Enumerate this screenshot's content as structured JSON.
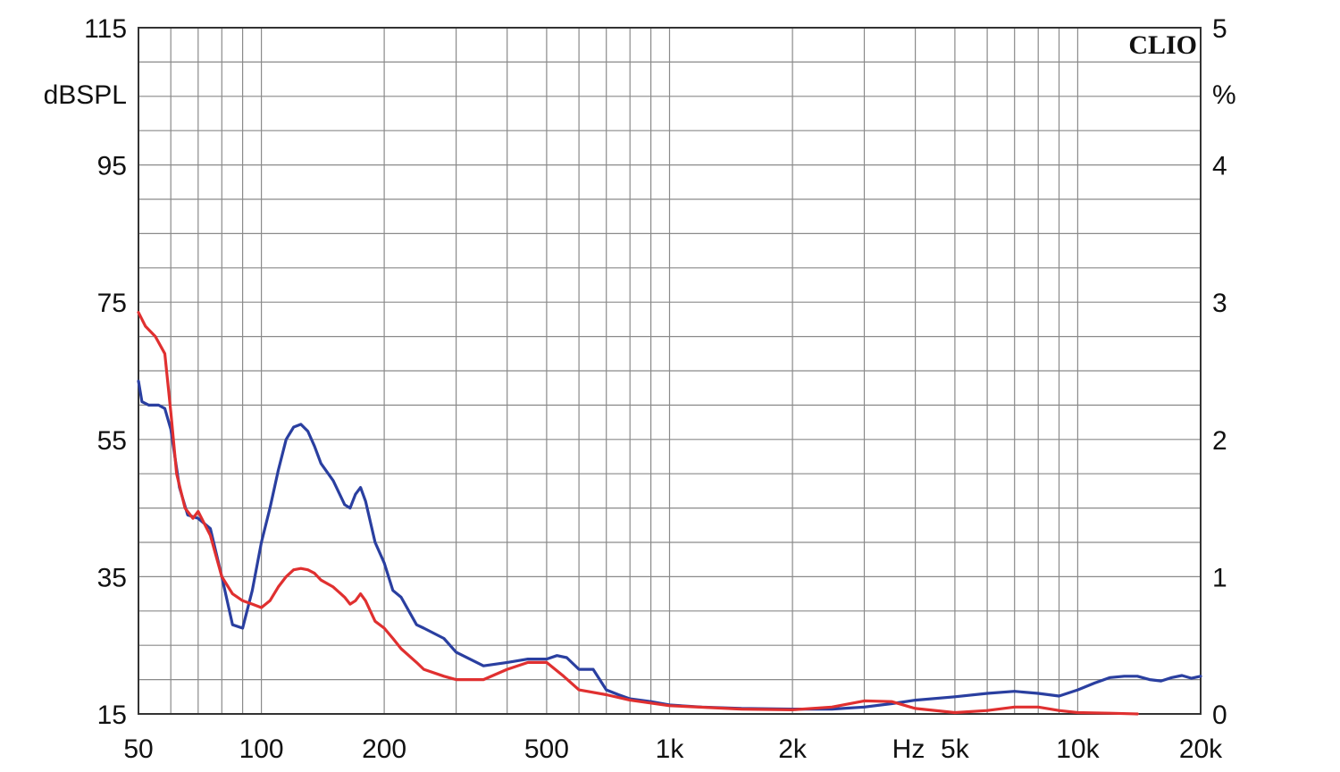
{
  "chart_data": {
    "type": "line",
    "brand": "CLIO",
    "x_scale": "log",
    "xlim": [
      50,
      20000
    ],
    "xlabel": "Hz",
    "x_ticks": [
      {
        "value": 50,
        "label": "50"
      },
      {
        "value": 100,
        "label": "100"
      },
      {
        "value": 200,
        "label": "200"
      },
      {
        "value": 500,
        "label": "500"
      },
      {
        "value": 1000,
        "label": "1k"
      },
      {
        "value": 2000,
        "label": "2k"
      },
      {
        "value": 5000,
        "label": "5k"
      },
      {
        "value": 10000,
        "label": "10k"
      },
      {
        "value": 20000,
        "label": "20k"
      }
    ],
    "ylabel": "dBSPL",
    "ylim": [
      15,
      115
    ],
    "y_ticks": [
      "115",
      "95",
      "75",
      "55",
      "35",
      "15"
    ],
    "y2label": "%",
    "y2lim": [
      0,
      5
    ],
    "y2_ticks": [
      "5",
      "4",
      "3",
      "2",
      "1",
      "0"
    ],
    "grid": true,
    "series": [
      {
        "color": "#2a3fa0",
        "x": [
          50,
          51,
          53,
          56,
          58,
          60,
          63,
          66,
          70,
          75,
          80,
          85,
          90,
          95,
          100,
          105,
          110,
          115,
          120,
          125,
          130,
          135,
          140,
          150,
          160,
          165,
          170,
          175,
          180,
          190,
          200,
          210,
          220,
          240,
          250,
          280,
          300,
          350,
          400,
          450,
          500,
          530,
          560,
          600,
          650,
          700,
          750,
          800,
          900,
          1000,
          1200,
          1500,
          2000,
          2500,
          3000,
          3500,
          4000,
          5000,
          6000,
          7000,
          8000,
          9000,
          10000,
          11000,
          12000,
          13000,
          14000,
          15000,
          16000,
          17000,
          18000,
          19000,
          20000
        ],
        "values": [
          63.5,
          60.5,
          60.0,
          60.0,
          59.5,
          56.5,
          48.0,
          44.0,
          43.5,
          42.0,
          35.0,
          28.0,
          27.5,
          33.0,
          40.0,
          45.0,
          50.5,
          55.0,
          56.8,
          57.2,
          56.2,
          54.0,
          51.5,
          49.0,
          45.5,
          45.0,
          47.0,
          48.0,
          46.0,
          40.0,
          37.0,
          33.0,
          32.0,
          28.0,
          27.5,
          26.0,
          24.0,
          22.0,
          22.5,
          23.0,
          23.0,
          23.5,
          23.2,
          21.5,
          21.5,
          18.5,
          17.8,
          17.2,
          16.8,
          16.3,
          16.0,
          15.8,
          15.7,
          15.7,
          16.0,
          16.5,
          17.0,
          17.5,
          18.0,
          18.3,
          18.0,
          17.6,
          18.5,
          19.5,
          20.3,
          20.5,
          20.5,
          20.0,
          19.8,
          20.3,
          20.6,
          20.2,
          20.5
        ]
      },
      {
        "color": "#e03030",
        "x": [
          50,
          52,
          55,
          58,
          60,
          62,
          65,
          68,
          70,
          75,
          80,
          85,
          90,
          95,
          100,
          105,
          110,
          115,
          120,
          125,
          130,
          135,
          140,
          150,
          160,
          165,
          170,
          175,
          180,
          190,
          200,
          210,
          220,
          240,
          250,
          280,
          300,
          350,
          400,
          450,
          500,
          550,
          600,
          700,
          800,
          1000,
          1500,
          2000,
          2500,
          3000,
          3500,
          4000,
          5000,
          6000,
          7000,
          8000,
          9000,
          10000,
          12000,
          14000
        ],
        "values": [
          73.5,
          71.5,
          70.0,
          67.5,
          59.0,
          50.0,
          45.0,
          43.5,
          44.5,
          41.0,
          35.0,
          32.5,
          31.5,
          31.0,
          30.5,
          31.5,
          33.5,
          35.0,
          36.0,
          36.2,
          36.0,
          35.5,
          34.5,
          33.5,
          32.0,
          31.0,
          31.5,
          32.5,
          31.5,
          28.5,
          27.5,
          26.0,
          24.5,
          22.5,
          21.5,
          20.5,
          20.0,
          20.0,
          21.5,
          22.5,
          22.5,
          20.5,
          18.5,
          17.8,
          17.0,
          16.2,
          15.7,
          15.6,
          16.0,
          16.9,
          16.8,
          15.8,
          15.2,
          15.5,
          16.0,
          16.0,
          15.5,
          15.2,
          15.1,
          15.0
        ]
      }
    ]
  }
}
